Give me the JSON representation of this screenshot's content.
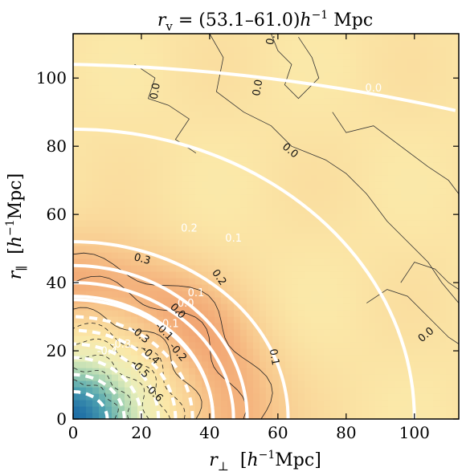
{
  "chart_data": {
    "type": "heatmap",
    "subtype": "2D correlation map with contour lines",
    "title_base": "r",
    "title_sub": "v",
    "title_rest": " = (53.1–61.0)",
    "title_h": "h",
    "title_exp": "−1",
    "title_unit": " Mpc",
    "xlabel_base": "r",
    "xlabel_sub": "⊥",
    "xlabel_unit_pre": "[",
    "xlabel_unit_h": "h",
    "xlabel_unit_exp": "−1",
    "xlabel_unit_post": "Mpc]",
    "ylabel_base": "r",
    "ylabel_sub": "∥",
    "ylabel_unit_pre": "[",
    "ylabel_unit_h": "h",
    "ylabel_unit_exp": "−1",
    "ylabel_unit_post": "Mpc]",
    "xlim": [
      0,
      113
    ],
    "ylim": [
      0,
      113
    ],
    "xticks": [
      "0",
      "20",
      "40",
      "60",
      "80",
      "100"
    ],
    "yticks": [
      "0",
      "20",
      "40",
      "60",
      "80",
      "100"
    ],
    "xtick_values": [
      0,
      20,
      40,
      60,
      80,
      100
    ],
    "ytick_values": [
      0,
      20,
      40,
      60,
      80,
      100
    ],
    "colormap": [
      "#1f6fa6",
      "#4fa3b0",
      "#9fd0b0",
      "#e8eebb",
      "#fbe8a8",
      "#f8c98e",
      "#f09a6a"
    ],
    "colormap_min": -0.9,
    "colormap_max": 0.45,
    "model_contours": {
      "color": "#ffffff",
      "line_width": 4,
      "levels": [
        {
          "level": 0.0,
          "label": "0.0",
          "radius": [
            100,
            85
          ]
        },
        {
          "level": 0.1,
          "label": "0.1",
          "radius": [
            63,
            52
          ]
        },
        {
          "level": 0.2,
          "label": "0.2",
          "radius": [
            51,
            45
          ]
        },
        {
          "level": 0.3,
          "label": "0.3",
          "radius": [
            41,
            36
          ]
        },
        {
          "level": 0.1,
          "label": "0.1",
          "radius": [
            47,
            40
          ]
        },
        {
          "level": 0.0,
          "label": "0.0",
          "radius": [
            41,
            35
          ]
        },
        {
          "level": -0.1,
          "label": "-0.1",
          "radius": [
            35,
            30
          ]
        },
        {
          "level": -0.2,
          "label": "-0.2",
          "radius": [
            30,
            26
          ]
        },
        {
          "level": -0.3,
          "label": "-0.3",
          "radius": [
            25,
            22
          ]
        },
        {
          "level": -0.4,
          "label": "-0.4",
          "radius": [
            20,
            18
          ]
        },
        {
          "level": -0.6,
          "label": "-0.6",
          "radius": [
            15,
            13
          ]
        },
        {
          "level": -0.8,
          "label": "-0.8",
          "radius": [
            10,
            8
          ]
        }
      ]
    },
    "data_contour_labels": [
      {
        "label": "0.0",
        "x": 25,
        "y": 96,
        "rotation": -80
      },
      {
        "label": "0.0",
        "x": 55,
        "y": 97,
        "rotation": -80
      },
      {
        "label": "0.0",
        "x": 59,
        "y": 112,
        "rotation": -80
      },
      {
        "label": "0.0",
        "x": 63,
        "y": 78,
        "rotation": 40
      },
      {
        "label": "0.0",
        "x": 104,
        "y": 24,
        "rotation": -40
      },
      {
        "label": "0.3",
        "x": 20,
        "y": 46,
        "rotation": 15
      },
      {
        "label": "0.2",
        "x": 42,
        "y": 41,
        "rotation": 55
      },
      {
        "label": "0.1",
        "x": 58,
        "y": 18,
        "rotation": 80
      },
      {
        "label": "0.0",
        "x": 30,
        "y": 31,
        "rotation": 45
      },
      {
        "label": "-0.1",
        "x": 26,
        "y": 25,
        "rotation": 45
      },
      {
        "label": "-0.2",
        "x": 30,
        "y": 19,
        "rotation": 50
      },
      {
        "label": "-0.3",
        "x": 19,
        "y": 24,
        "rotation": 40
      },
      {
        "label": "-0.4",
        "x": 22,
        "y": 18,
        "rotation": 45
      },
      {
        "label": "-0.5",
        "x": 19,
        "y": 14,
        "rotation": 45
      },
      {
        "label": "-0.6",
        "x": 23,
        "y": 7,
        "rotation": 45
      }
    ],
    "model_contour_labels": [
      {
        "label": "0.0",
        "x": 88,
        "y": 96
      },
      {
        "label": "0.2",
        "x": 34,
        "y": 55
      },
      {
        "label": "0.1",
        "x": 47,
        "y": 52
      },
      {
        "label": "0.1",
        "x": 36,
        "y": 36
      },
      {
        "label": "0.0",
        "x": 33,
        "y": 33
      },
      {
        "label": "-0.1",
        "x": 28,
        "y": 27
      },
      {
        "label": "-0.3",
        "x": 14,
        "y": 21
      },
      {
        "label": "-0.4",
        "x": 10,
        "y": 19
      }
    ],
    "grid": false
  }
}
